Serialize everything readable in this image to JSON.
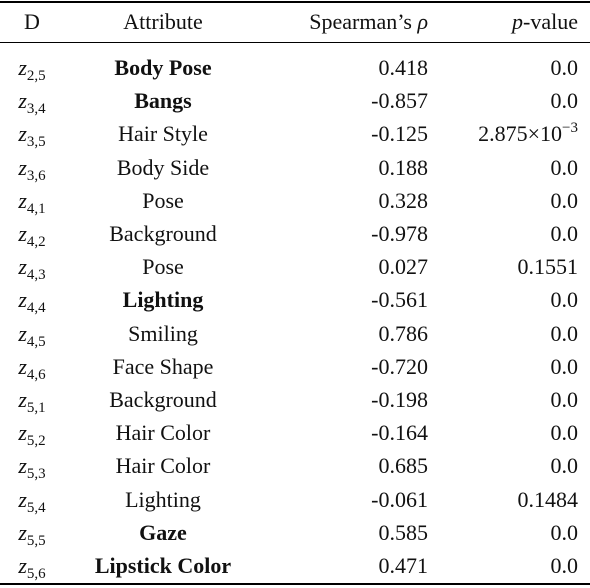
{
  "table": {
    "header": {
      "d": "D",
      "attribute": "Attribute",
      "rho": {
        "text": "Spearman’s",
        "symbol": "ρ"
      },
      "p": {
        "symbol": "p",
        "text": "-value"
      }
    },
    "rows": [
      {
        "d": {
          "var": "z",
          "sub": "2,5"
        },
        "attribute": "Body Pose",
        "bold": true,
        "rho": "0.418",
        "p": "0.0"
      },
      {
        "d": {
          "var": "z",
          "sub": "3,4"
        },
        "attribute": "Bangs",
        "bold": true,
        "rho": "-0.857",
        "p": "0.0"
      },
      {
        "d": {
          "var": "z",
          "sub": "3,5"
        },
        "attribute": "Hair Style",
        "bold": false,
        "rho": "-0.125",
        "p": {
          "mantissa": "2.875×10",
          "exponent": "−3"
        }
      },
      {
        "d": {
          "var": "z",
          "sub": "3,6"
        },
        "attribute": "Body Side",
        "bold": false,
        "rho": "0.188",
        "p": "0.0"
      },
      {
        "d": {
          "var": "z",
          "sub": "4,1"
        },
        "attribute": "Pose",
        "bold": false,
        "rho": "0.328",
        "p": "0.0"
      },
      {
        "d": {
          "var": "z",
          "sub": "4,2"
        },
        "attribute": "Background",
        "bold": false,
        "rho": "-0.978",
        "p": "0.0"
      },
      {
        "d": {
          "var": "z",
          "sub": "4,3"
        },
        "attribute": "Pose",
        "bold": false,
        "rho": "0.027",
        "p": "0.1551"
      },
      {
        "d": {
          "var": "z",
          "sub": "4,4"
        },
        "attribute": "Lighting",
        "bold": true,
        "rho": "-0.561",
        "p": "0.0"
      },
      {
        "d": {
          "var": "z",
          "sub": "4,5"
        },
        "attribute": "Smiling",
        "bold": false,
        "rho": "0.786",
        "p": "0.0"
      },
      {
        "d": {
          "var": "z",
          "sub": "4,6"
        },
        "attribute": "Face Shape",
        "bold": false,
        "rho": "-0.720",
        "p": "0.0"
      },
      {
        "d": {
          "var": "z",
          "sub": "5,1"
        },
        "attribute": "Background",
        "bold": false,
        "rho": "-0.198",
        "p": "0.0"
      },
      {
        "d": {
          "var": "z",
          "sub": "5,2"
        },
        "attribute": "Hair Color",
        "bold": false,
        "rho": "-0.164",
        "p": "0.0"
      },
      {
        "d": {
          "var": "z",
          "sub": "5,3"
        },
        "attribute": "Hair Color",
        "bold": false,
        "rho": "0.685",
        "p": "0.0"
      },
      {
        "d": {
          "var": "z",
          "sub": "5,4"
        },
        "attribute": "Lighting",
        "bold": false,
        "rho": "-0.061",
        "p": "0.1484"
      },
      {
        "d": {
          "var": "z",
          "sub": "5,5"
        },
        "attribute": "Gaze",
        "bold": true,
        "rho": "0.585",
        "p": "0.0"
      },
      {
        "d": {
          "var": "z",
          "sub": "5,6"
        },
        "attribute": "Lipstick Color",
        "bold": true,
        "rho": "0.471",
        "p": "0.0"
      }
    ]
  }
}
